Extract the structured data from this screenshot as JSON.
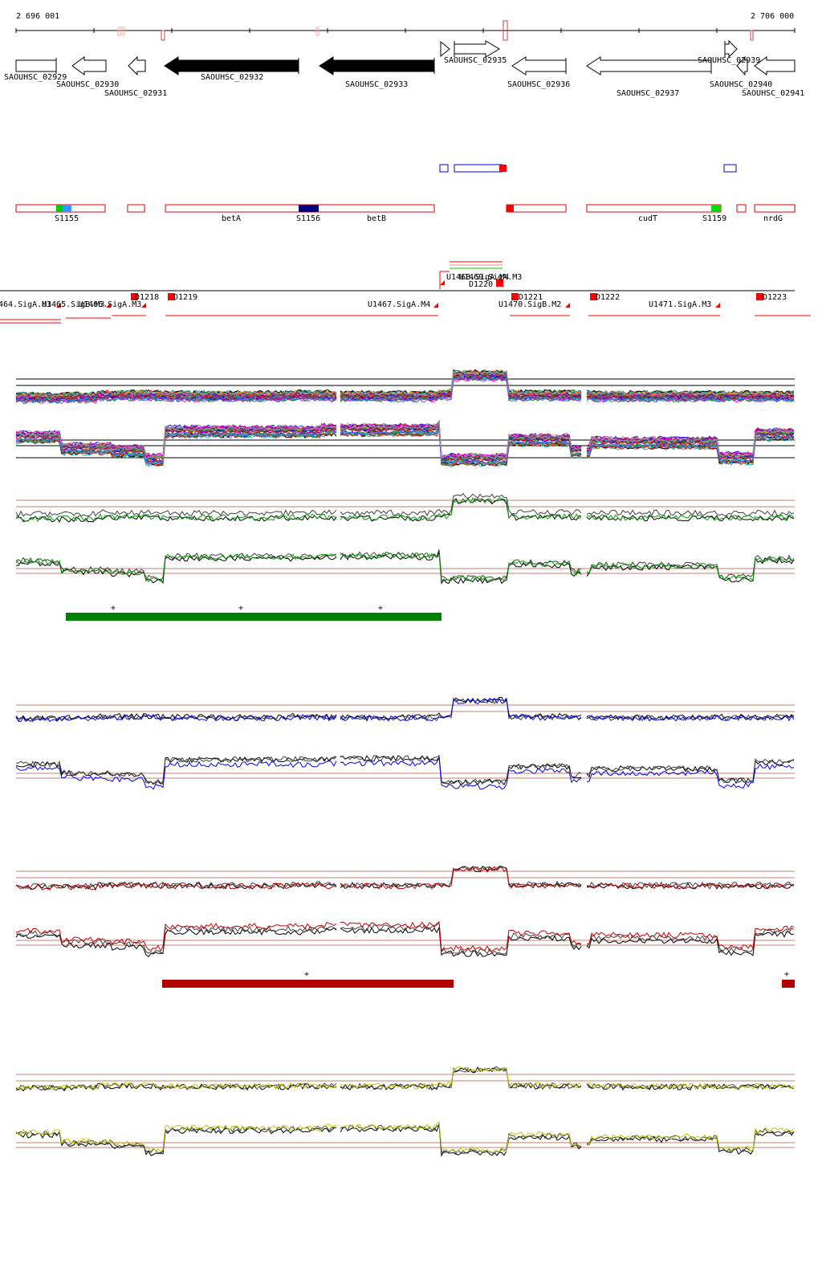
{
  "coords": {
    "left": "2 696 001",
    "right": "2 706 000"
  },
  "colors": {
    "red": "#ff0000",
    "blue": "#0000ff",
    "green": "#00b000",
    "darkgreen": "#008000",
    "darkred": "#b00000",
    "navy": "#000080",
    "yellow": "#c8c800",
    "line": "#8b2500"
  },
  "genes": [
    {
      "label": "SAOUHSC_02929",
      "filled": false,
      "dir": "right"
    },
    {
      "label": "SAOUHSC_02930",
      "filled": false,
      "dir": "left"
    },
    {
      "label": "SAOUHSC_02931",
      "filled": false,
      "dir": "left"
    },
    {
      "label": "SAOUHSC_02932",
      "filled": true,
      "dir": "left"
    },
    {
      "label": "SAOUHSC_02933",
      "filled": true,
      "dir": "left"
    },
    {
      "label": "SAOUHSC_02935",
      "filled": false,
      "dir": "right"
    },
    {
      "label": "SAOUHSC_02936",
      "filled": false,
      "dir": "left"
    },
    {
      "label": "SAOUHSC_02937",
      "filled": false,
      "dir": "left"
    },
    {
      "label": "SAOUHSC_02939",
      "filled": false,
      "dir": "right"
    },
    {
      "label": "SAOUHSC_02940",
      "filled": false,
      "dir": "left"
    },
    {
      "label": "SAOUHSC_02941",
      "filled": false,
      "dir": "left"
    }
  ],
  "feature_labels": [
    "S1155",
    "betA",
    "S1156",
    "betB",
    "cudT",
    "S1159",
    "nrdG"
  ],
  "promoter_labels": [
    "464.SigA.M3",
    "U1465.SigB.M3",
    "U1466.SigA.M3",
    "D1218",
    "D1219",
    "U1467.SigA.M4",
    "U1468.SigA.M4",
    "U1469.SigA.M3",
    "D1220",
    "D1221",
    "U1470.SigB.M2",
    "D1222",
    "U1471.SigA.M3",
    "D1223"
  ],
  "panels": [
    {
      "name": "all-conditions",
      "colors": [
        "#000000",
        "#8b4513",
        "#ff0000",
        "#00a000",
        "#0000ff",
        "#ff00ff",
        "#ffa500",
        "#008080",
        "#800080",
        "#808000",
        "#00c0c0",
        "#c00060",
        "#6060ff",
        "#a0a0a0"
      ]
    },
    {
      "name": "green-condition",
      "colors": [
        "#000000",
        "#404040",
        "#00a000"
      ]
    },
    {
      "name": "blue-condition",
      "colors": [
        "#000000",
        "#404040",
        "#0000ff"
      ]
    },
    {
      "name": "red-condition",
      "colors": [
        "#000000",
        "#404040",
        "#cc0000"
      ]
    },
    {
      "name": "yellow-condition",
      "colors": [
        "#000000",
        "#404040",
        "#c8c800"
      ]
    }
  ],
  "bars": [
    {
      "name": "green-bar",
      "color": "#008000",
      "marks": [
        "+",
        "+",
        "+"
      ]
    },
    {
      "name": "red-bar",
      "color": "#b00000",
      "marks": [
        "+"
      ]
    },
    {
      "name": "red-bar-small",
      "color": "#b00000",
      "marks": [
        "+"
      ]
    }
  ]
}
